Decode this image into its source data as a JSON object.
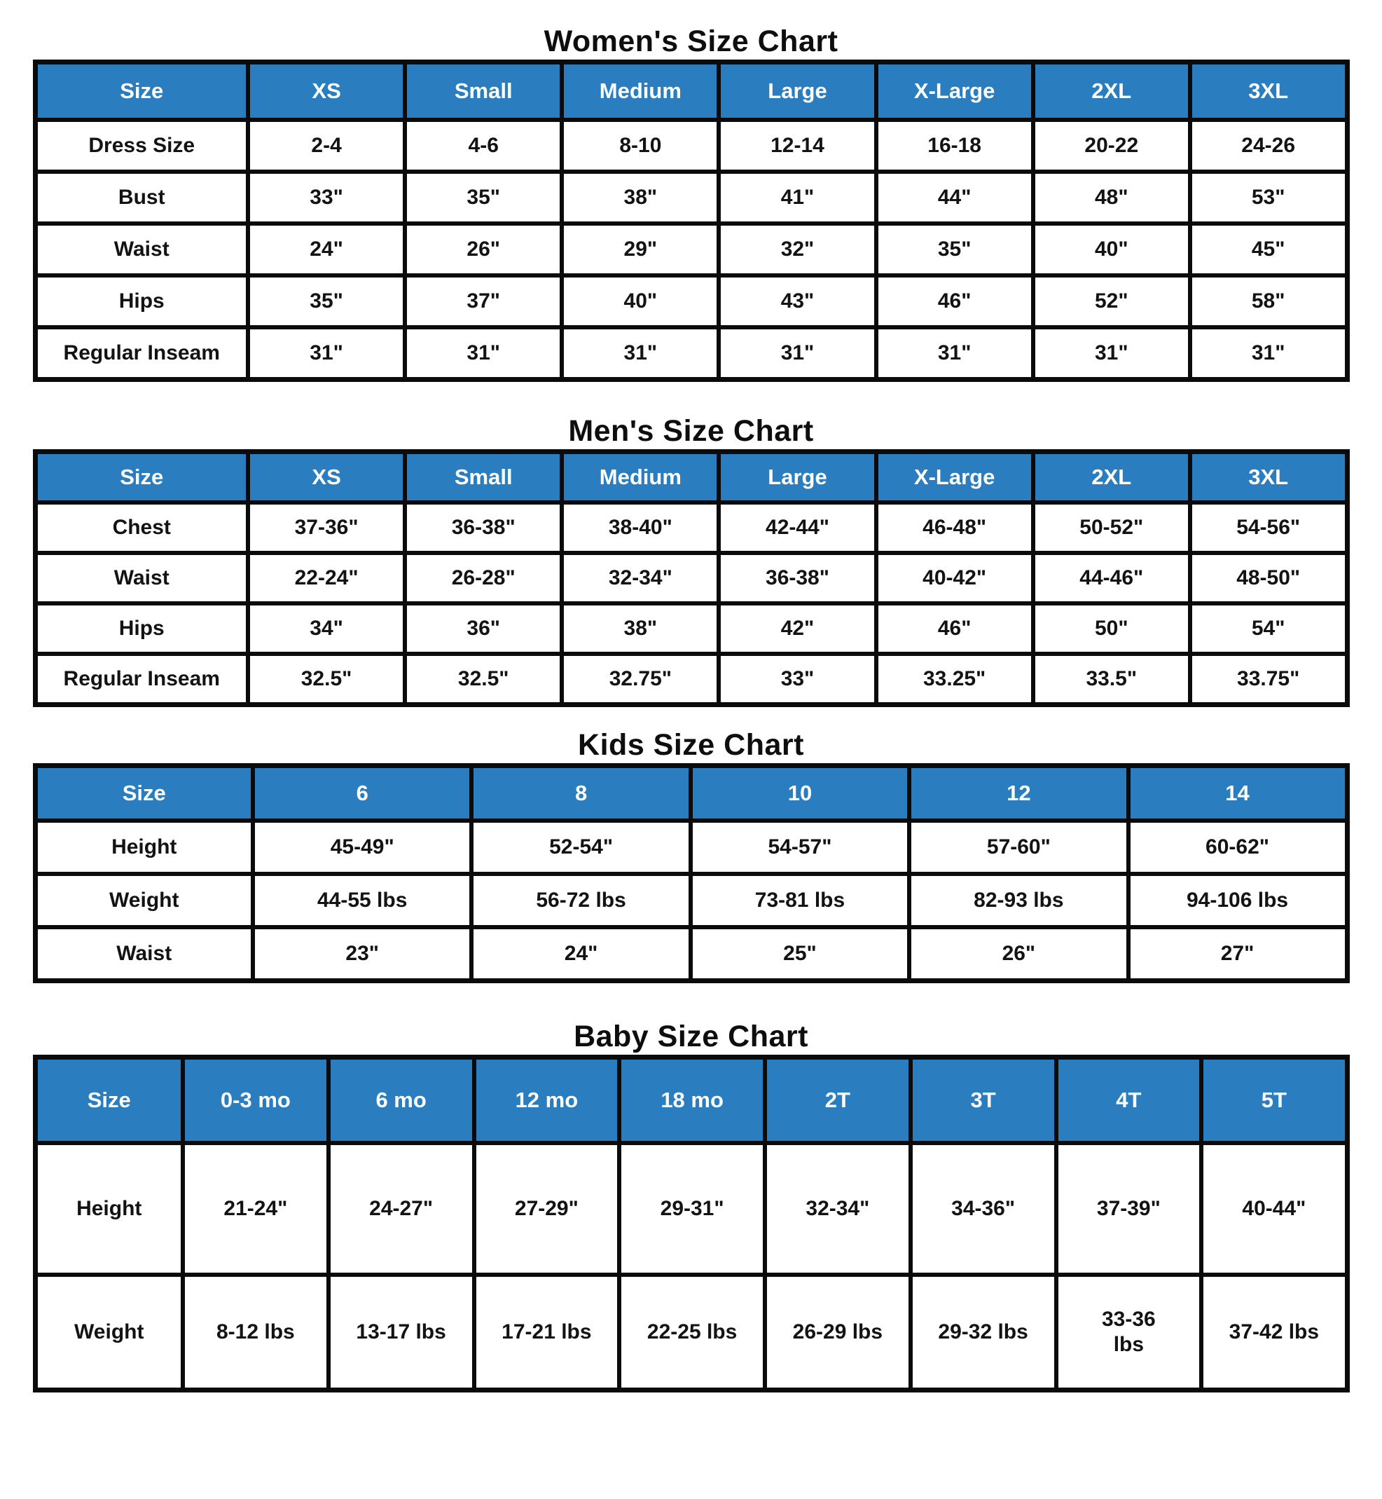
{
  "page": {
    "background": "#ffffff",
    "accent_blue": "#2a7dbe",
    "border_color": "#0b0b0b",
    "header_text_color": "#ffffff",
    "body_text_color": "#131313"
  },
  "charts": [
    {
      "title": "Women's Size Chart",
      "columns": [
        "Size",
        "XS",
        "Small",
        "Medium",
        "Large",
        "X-Large",
        "2XL",
        "3XL"
      ],
      "rows": [
        {
          "label": "Dress Size",
          "values": [
            "2-4",
            "4-6",
            "8-10",
            "12-14",
            "16-18",
            "20-22",
            "24-26"
          ]
        },
        {
          "label": "Bust",
          "values": [
            "33\"",
            "35\"",
            "38\"",
            "41\"",
            "44\"",
            "48\"",
            "53\""
          ]
        },
        {
          "label": "Waist",
          "values": [
            "24\"",
            "26\"",
            "29\"",
            "32\"",
            "35\"",
            "40\"",
            "45\""
          ]
        },
        {
          "label": "Hips",
          "values": [
            "35\"",
            "37\"",
            "40\"",
            "43\"",
            "46\"",
            "52\"",
            "58\""
          ]
        },
        {
          "label": "Regular Inseam",
          "values": [
            "31\"",
            "31\"",
            "31\"",
            "31\"",
            "31\"",
            "31\"",
            "31\""
          ]
        }
      ]
    },
    {
      "title": "Men's Size Chart",
      "columns": [
        "Size",
        "XS",
        "Small",
        "Medium",
        "Large",
        "X-Large",
        "2XL",
        "3XL"
      ],
      "rows": [
        {
          "label": "Chest",
          "values": [
            "37-36\"",
            "36-38\"",
            "38-40\"",
            "42-44\"",
            "46-48\"",
            "50-52\"",
            "54-56\""
          ]
        },
        {
          "label": "Waist",
          "values": [
            "22-24\"",
            "26-28\"",
            "32-34\"",
            "36-38\"",
            "40-42\"",
            "44-46\"",
            "48-50\""
          ]
        },
        {
          "label": "Hips",
          "values": [
            "34\"",
            "36\"",
            "38\"",
            "42\"",
            "46\"",
            "50\"",
            "54\""
          ]
        },
        {
          "label": "Regular Inseam",
          "values": [
            "32.5\"",
            "32.5\"",
            "32.75\"",
            "33\"",
            "33.25\"",
            "33.5\"",
            "33.75\""
          ]
        }
      ]
    },
    {
      "title": "Kids Size Chart",
      "columns": [
        "Size",
        "6",
        "8",
        "10",
        "12",
        "14"
      ],
      "rows": [
        {
          "label": "Height",
          "values": [
            "45-49\"",
            "52-54\"",
            "54-57\"",
            "57-60\"",
            "60-62\""
          ]
        },
        {
          "label": "Weight",
          "values": [
            "44-55 lbs",
            "56-72 lbs",
            "73-81 lbs",
            "82-93 lbs",
            "94-106 lbs"
          ]
        },
        {
          "label": "Waist",
          "values": [
            "23\"",
            "24\"",
            "25\"",
            "26\"",
            "27\""
          ]
        }
      ]
    },
    {
      "title": "Baby Size Chart",
      "columns": [
        "Size",
        "0-3 mo",
        "6 mo",
        "12 mo",
        "18 mo",
        "2T",
        "3T",
        "4T",
        "5T"
      ],
      "rows": [
        {
          "label": "Height",
          "values": [
            "21-24\"",
            "24-27\"",
            "27-29\"",
            "29-31\"",
            "32-34\"",
            "34-36\"",
            "37-39\"",
            "40-44\""
          ]
        },
        {
          "label": "Weight",
          "values": [
            "8-12 lbs",
            "13-17 lbs",
            "17-21 lbs",
            "22-25 lbs",
            "26-29 lbs",
            "29-32 lbs",
            "33-36\nlbs",
            "37-42 lbs"
          ]
        }
      ]
    }
  ]
}
